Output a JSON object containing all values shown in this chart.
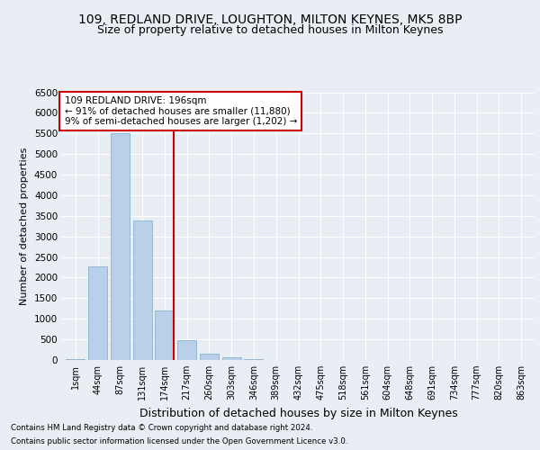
{
  "title1": "109, REDLAND DRIVE, LOUGHTON, MILTON KEYNES, MK5 8BP",
  "title2": "Size of property relative to detached houses in Milton Keynes",
  "xlabel": "Distribution of detached houses by size in Milton Keynes",
  "ylabel": "Number of detached properties",
  "footnote1": "Contains HM Land Registry data © Crown copyright and database right 2024.",
  "footnote2": "Contains public sector information licensed under the Open Government Licence v3.0.",
  "categories": [
    "1sqm",
    "44sqm",
    "87sqm",
    "131sqm",
    "174sqm",
    "217sqm",
    "260sqm",
    "303sqm",
    "346sqm",
    "389sqm",
    "432sqm",
    "475sqm",
    "518sqm",
    "561sqm",
    "604sqm",
    "648sqm",
    "691sqm",
    "734sqm",
    "777sqm",
    "820sqm",
    "863sqm"
  ],
  "values": [
    30,
    2280,
    5500,
    3390,
    1200,
    470,
    160,
    70,
    20,
    5,
    2,
    1,
    0,
    0,
    0,
    0,
    0,
    0,
    0,
    0,
    0
  ],
  "bar_color": "#b8d0e8",
  "bar_edge_color": "#7aaac8",
  "vline_color": "#cc0000",
  "vline_x_index": 4,
  "annotation_title": "109 REDLAND DRIVE: 196sqm",
  "annotation_line1": "← 91% of detached houses are smaller (11,880)",
  "annotation_line2": "9% of semi-detached houses are larger (1,202) →",
  "annotation_box_color": "#ffffff",
  "annotation_box_edge": "#cc0000",
  "ylim": [
    0,
    6500
  ],
  "yticks": [
    0,
    500,
    1000,
    1500,
    2000,
    2500,
    3000,
    3500,
    4000,
    4500,
    5000,
    5500,
    6000,
    6500
  ],
  "bg_color": "#e8eef4",
  "grid_color": "#ffffff",
  "title1_fontsize": 10,
  "title2_fontsize": 9,
  "xlabel_fontsize": 9,
  "ylabel_fontsize": 8,
  "annotation_fontsize": 7.5,
  "tick_fontsize": 7,
  "ytick_fontsize": 7.5,
  "footnote_fontsize": 6.2
}
